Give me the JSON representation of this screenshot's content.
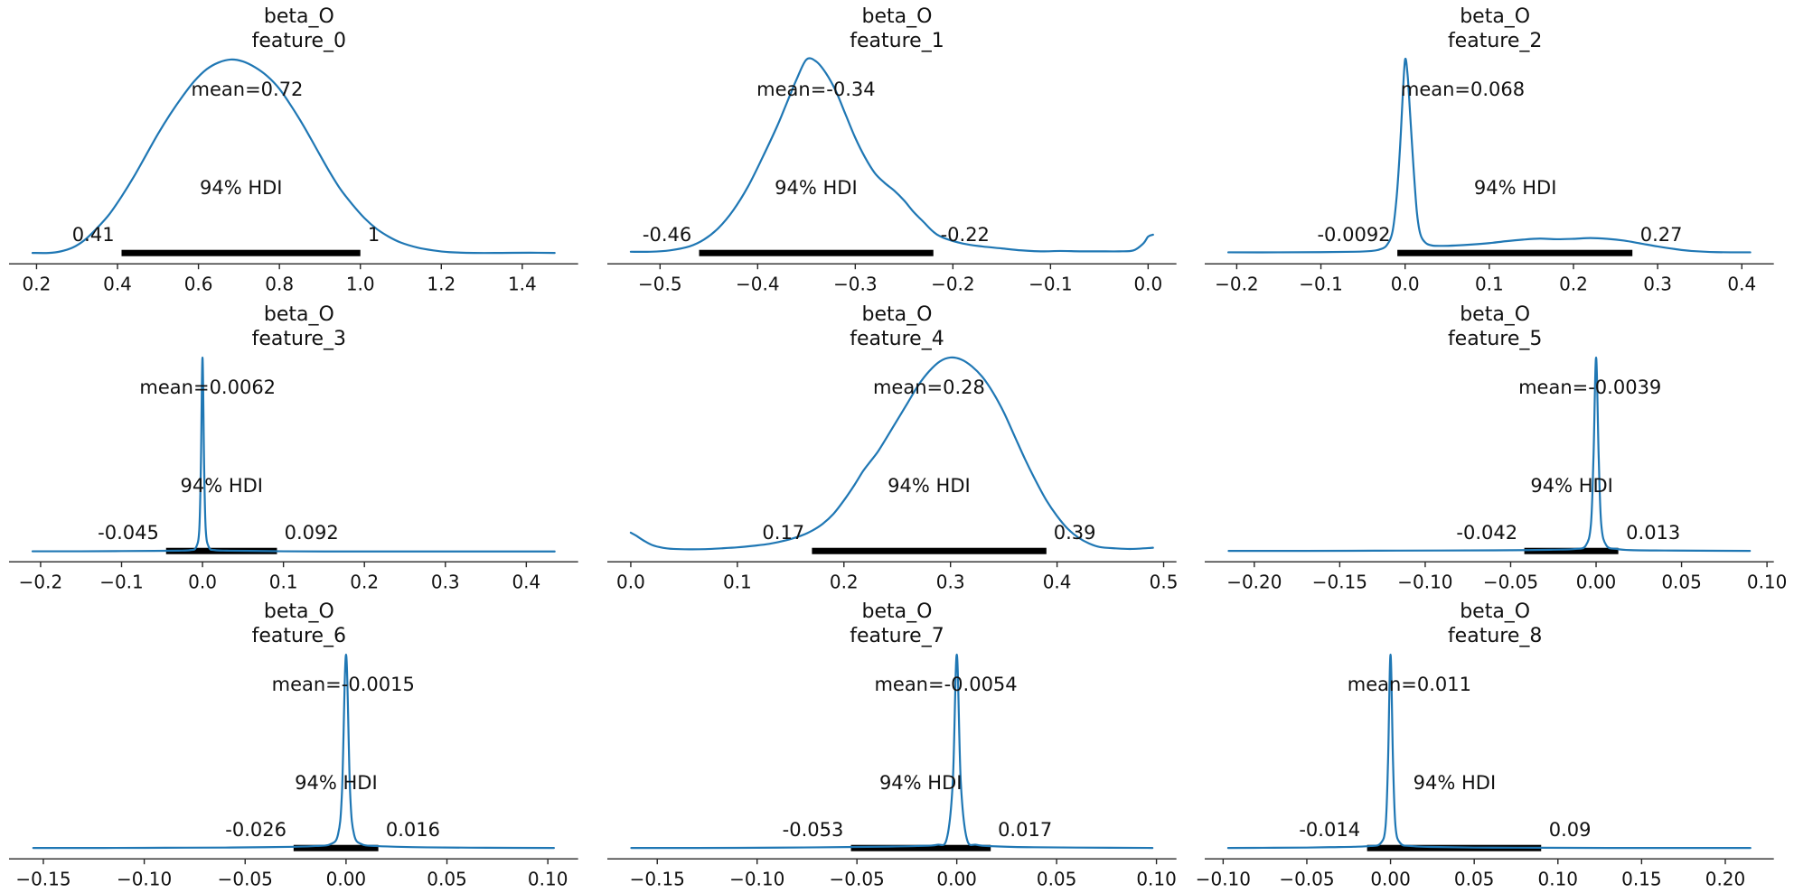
{
  "figure": {
    "background": "#ffffff",
    "curve_color": "#1f77b4",
    "hdi_bar_color": "#000000",
    "text_color": "#111111",
    "axis_color": "#262626",
    "rows": 3,
    "cols": 3
  },
  "chart_data": [
    {
      "type": "line",
      "title": "beta_O",
      "subtitle": "feature_0",
      "mean": 0.72,
      "mean_label": "mean=0.72",
      "hdi_label": "94% HDI",
      "hdi": [
        0.41,
        1.0
      ],
      "hdi_lo_label": "0.41",
      "hdi_hi_label": "1",
      "xlim": [
        0.132,
        1.538
      ],
      "xticks": [
        0.2,
        0.4,
        0.6,
        0.8,
        1.0,
        1.2,
        1.4
      ],
      "xtick_labels": [
        "0.2",
        "0.4",
        "0.6",
        "0.8",
        "1.0",
        "1.2",
        "1.4"
      ],
      "curve": [
        [
          0.19,
          0.012
        ],
        [
          0.23,
          0.012
        ],
        [
          0.26,
          0.02
        ],
        [
          0.29,
          0.04
        ],
        [
          0.32,
          0.08
        ],
        [
          0.35,
          0.14
        ],
        [
          0.38,
          0.21
        ],
        [
          0.41,
          0.3
        ],
        [
          0.44,
          0.4
        ],
        [
          0.47,
          0.51
        ],
        [
          0.5,
          0.62
        ],
        [
          0.53,
          0.72
        ],
        [
          0.56,
          0.81
        ],
        [
          0.59,
          0.89
        ],
        [
          0.62,
          0.95
        ],
        [
          0.65,
          0.985
        ],
        [
          0.68,
          1.0
        ],
        [
          0.71,
          0.99
        ],
        [
          0.74,
          0.96
        ],
        [
          0.77,
          0.915
        ],
        [
          0.8,
          0.85
        ],
        [
          0.83,
          0.76
        ],
        [
          0.86,
          0.66
        ],
        [
          0.89,
          0.55
        ],
        [
          0.92,
          0.44
        ],
        [
          0.95,
          0.34
        ],
        [
          0.98,
          0.26
        ],
        [
          1.01,
          0.19
        ],
        [
          1.04,
          0.135
        ],
        [
          1.07,
          0.095
        ],
        [
          1.1,
          0.065
        ],
        [
          1.14,
          0.04
        ],
        [
          1.18,
          0.025
        ],
        [
          1.22,
          0.016
        ],
        [
          1.28,
          0.012
        ],
        [
          1.35,
          0.012
        ],
        [
          1.42,
          0.013
        ],
        [
          1.48,
          0.012
        ]
      ]
    },
    {
      "type": "line",
      "title": "beta_O",
      "subtitle": "feature_1",
      "mean": -0.34,
      "mean_label": "mean=-0.34",
      "hdi_label": "94% HDI",
      "hdi": [
        -0.46,
        -0.22
      ],
      "hdi_lo_label": "-0.46",
      "hdi_hi_label": "-0.22",
      "xlim": [
        -0.554,
        0.029
      ],
      "xticks": [
        -0.5,
        -0.4,
        -0.3,
        -0.2,
        -0.1,
        0.0
      ],
      "xtick_labels": [
        "−0.5",
        "−0.4",
        "−0.3",
        "−0.2",
        "−0.1",
        "0.0"
      ],
      "curve": [
        [
          -0.53,
          0.018
        ],
        [
          -0.51,
          0.018
        ],
        [
          -0.49,
          0.025
        ],
        [
          -0.47,
          0.045
        ],
        [
          -0.455,
          0.08
        ],
        [
          -0.44,
          0.14
        ],
        [
          -0.425,
          0.23
        ],
        [
          -0.41,
          0.35
        ],
        [
          -0.395,
          0.5
        ],
        [
          -0.38,
          0.66
        ],
        [
          -0.37,
          0.78
        ],
        [
          -0.36,
          0.9
        ],
        [
          -0.35,
          1.0
        ],
        [
          -0.34,
          0.99
        ],
        [
          -0.33,
          0.93
        ],
        [
          -0.32,
          0.84
        ],
        [
          -0.31,
          0.72
        ],
        [
          -0.3,
          0.6
        ],
        [
          -0.29,
          0.5
        ],
        [
          -0.28,
          0.42
        ],
        [
          -0.27,
          0.37
        ],
        [
          -0.26,
          0.33
        ],
        [
          -0.25,
          0.28
        ],
        [
          -0.24,
          0.22
        ],
        [
          -0.23,
          0.17
        ],
        [
          -0.22,
          0.12
        ],
        [
          -0.21,
          0.09
        ],
        [
          -0.19,
          0.06
        ],
        [
          -0.17,
          0.045
        ],
        [
          -0.15,
          0.035
        ],
        [
          -0.13,
          0.025
        ],
        [
          -0.11,
          0.02
        ],
        [
          -0.09,
          0.022
        ],
        [
          -0.07,
          0.02
        ],
        [
          -0.05,
          0.02
        ],
        [
          -0.03,
          0.02
        ],
        [
          -0.015,
          0.025
        ],
        [
          -0.005,
          0.06
        ],
        [
          0.0,
          0.095
        ],
        [
          0.005,
          0.105
        ]
      ]
    },
    {
      "type": "line",
      "title": "beta_O",
      "subtitle": "feature_2",
      "mean": 0.068,
      "mean_label": "mean=0.068",
      "hdi_label": "94% HDI",
      "hdi": [
        -0.0092,
        0.27
      ],
      "hdi_lo_label": "-0.0092",
      "hdi_hi_label": "0.27",
      "xlim": [
        -0.238,
        0.438
      ],
      "xticks": [
        -0.2,
        -0.1,
        0.0,
        0.1,
        0.2,
        0.3,
        0.4
      ],
      "xtick_labels": [
        "−0.2",
        "−0.1",
        "0.0",
        "0.1",
        "0.2",
        "0.3",
        "0.4"
      ],
      "curve": [
        [
          -0.21,
          0.015
        ],
        [
          -0.15,
          0.015
        ],
        [
          -0.1,
          0.016
        ],
        [
          -0.06,
          0.018
        ],
        [
          -0.04,
          0.022
        ],
        [
          -0.03,
          0.03
        ],
        [
          -0.022,
          0.05
        ],
        [
          -0.015,
          0.12
        ],
        [
          -0.01,
          0.3
        ],
        [
          -0.006,
          0.55
        ],
        [
          -0.003,
          0.8
        ],
        [
          0.0,
          1.0
        ],
        [
          0.003,
          0.92
        ],
        [
          0.006,
          0.72
        ],
        [
          0.01,
          0.45
        ],
        [
          0.014,
          0.22
        ],
        [
          0.018,
          0.11
        ],
        [
          0.024,
          0.065
        ],
        [
          0.032,
          0.05
        ],
        [
          0.045,
          0.048
        ],
        [
          0.06,
          0.05
        ],
        [
          0.08,
          0.055
        ],
        [
          0.1,
          0.062
        ],
        [
          0.12,
          0.072
        ],
        [
          0.14,
          0.08
        ],
        [
          0.16,
          0.085
        ],
        [
          0.18,
          0.082
        ],
        [
          0.2,
          0.084
        ],
        [
          0.22,
          0.088
        ],
        [
          0.24,
          0.084
        ],
        [
          0.26,
          0.075
        ],
        [
          0.28,
          0.06
        ],
        [
          0.3,
          0.045
        ],
        [
          0.32,
          0.032
        ],
        [
          0.34,
          0.022
        ],
        [
          0.37,
          0.016
        ],
        [
          0.41,
          0.015
        ]
      ]
    },
    {
      "type": "line",
      "title": "beta_O",
      "subtitle": "feature_3",
      "mean": 0.0062,
      "mean_label": "mean=0.0062",
      "hdi_label": "94% HDI",
      "hdi": [
        -0.045,
        0.092
      ],
      "hdi_lo_label": "-0.045",
      "hdi_hi_label": "0.092",
      "xlim": [
        -0.239,
        0.464
      ],
      "xticks": [
        -0.2,
        -0.1,
        0.0,
        0.1,
        0.2,
        0.3,
        0.4
      ],
      "xtick_labels": [
        "−0.2",
        "−0.1",
        "0.0",
        "0.1",
        "0.2",
        "0.3",
        "0.4"
      ],
      "curve": [
        [
          -0.21,
          0.01
        ],
        [
          -0.15,
          0.01
        ],
        [
          -0.1,
          0.011
        ],
        [
          -0.06,
          0.012
        ],
        [
          -0.03,
          0.013
        ],
        [
          -0.015,
          0.016
        ],
        [
          -0.008,
          0.03
        ],
        [
          -0.004,
          0.12
        ],
        [
          -0.002,
          0.45
        ],
        [
          0.0,
          1.0
        ],
        [
          0.002,
          0.45
        ],
        [
          0.004,
          0.12
        ],
        [
          0.008,
          0.03
        ],
        [
          0.015,
          0.016
        ],
        [
          0.03,
          0.013
        ],
        [
          0.06,
          0.012
        ],
        [
          0.1,
          0.01
        ],
        [
          0.15,
          0.009
        ],
        [
          0.22,
          0.009
        ],
        [
          0.3,
          0.009
        ],
        [
          0.37,
          0.009
        ],
        [
          0.435,
          0.009
        ]
      ]
    },
    {
      "type": "line",
      "title": "beta_O",
      "subtitle": "feature_4",
      "mean": 0.28,
      "mean_label": "mean=0.28",
      "hdi_label": "94% HDI",
      "hdi": [
        0.17,
        0.39
      ],
      "hdi_lo_label": "0.17",
      "hdi_hi_label": "0.39",
      "xlim": [
        -0.022,
        0.512
      ],
      "xticks": [
        0.0,
        0.1,
        0.2,
        0.3,
        0.4,
        0.5
      ],
      "xtick_labels": [
        "0.0",
        "0.1",
        "0.2",
        "0.3",
        "0.4",
        "0.5"
      ],
      "curve": [
        [
          0.0,
          0.105
        ],
        [
          0.005,
          0.09
        ],
        [
          0.012,
          0.065
        ],
        [
          0.02,
          0.042
        ],
        [
          0.03,
          0.028
        ],
        [
          0.04,
          0.022
        ],
        [
          0.055,
          0.02
        ],
        [
          0.07,
          0.021
        ],
        [
          0.085,
          0.025
        ],
        [
          0.1,
          0.03
        ],
        [
          0.115,
          0.038
        ],
        [
          0.13,
          0.048
        ],
        [
          0.145,
          0.065
        ],
        [
          0.16,
          0.09
        ],
        [
          0.17,
          0.115
        ],
        [
          0.18,
          0.15
        ],
        [
          0.19,
          0.2
        ],
        [
          0.2,
          0.27
        ],
        [
          0.21,
          0.35
        ],
        [
          0.218,
          0.42
        ],
        [
          0.225,
          0.47
        ],
        [
          0.232,
          0.52
        ],
        [
          0.24,
          0.59
        ],
        [
          0.25,
          0.68
        ],
        [
          0.26,
          0.77
        ],
        [
          0.27,
          0.86
        ],
        [
          0.28,
          0.93
        ],
        [
          0.29,
          0.98
        ],
        [
          0.3,
          1.0
        ],
        [
          0.31,
          0.99
        ],
        [
          0.32,
          0.955
        ],
        [
          0.33,
          0.9
        ],
        [
          0.34,
          0.82
        ],
        [
          0.35,
          0.72
        ],
        [
          0.36,
          0.6
        ],
        [
          0.37,
          0.48
        ],
        [
          0.38,
          0.37
        ],
        [
          0.39,
          0.27
        ],
        [
          0.4,
          0.19
        ],
        [
          0.41,
          0.125
        ],
        [
          0.42,
          0.08
        ],
        [
          0.43,
          0.05
        ],
        [
          0.44,
          0.032
        ],
        [
          0.455,
          0.025
        ],
        [
          0.47,
          0.022
        ],
        [
          0.49,
          0.028
        ]
      ]
    },
    {
      "type": "line",
      "title": "beta_O",
      "subtitle": "feature_5",
      "mean": -0.0039,
      "mean_label": "mean=-0.0039",
      "hdi_label": "94% HDI",
      "hdi": [
        -0.042,
        0.013
      ],
      "hdi_lo_label": "-0.042",
      "hdi_hi_label": "0.013",
      "xlim": [
        -0.229,
        0.104
      ],
      "xticks": [
        -0.2,
        -0.15,
        -0.1,
        -0.05,
        0.0,
        0.05,
        0.1
      ],
      "xtick_labels": [
        "−0.20",
        "−0.15",
        "−0.10",
        "−0.05",
        "0.00",
        "0.05",
        "0.10"
      ],
      "curve": [
        [
          -0.215,
          0.012
        ],
        [
          -0.17,
          0.012
        ],
        [
          -0.13,
          0.013
        ],
        [
          -0.09,
          0.014
        ],
        [
          -0.06,
          0.015
        ],
        [
          -0.04,
          0.016
        ],
        [
          -0.025,
          0.018
        ],
        [
          -0.012,
          0.022
        ],
        [
          -0.006,
          0.04
        ],
        [
          -0.003,
          0.15
        ],
        [
          -0.0015,
          0.5
        ],
        [
          0.0,
          1.0
        ],
        [
          0.0015,
          0.5
        ],
        [
          0.003,
          0.15
        ],
        [
          0.006,
          0.04
        ],
        [
          0.012,
          0.022
        ],
        [
          0.02,
          0.016
        ],
        [
          0.04,
          0.014
        ],
        [
          0.06,
          0.013
        ],
        [
          0.09,
          0.012
        ]
      ]
    },
    {
      "type": "line",
      "title": "beta_O",
      "subtitle": "feature_6",
      "mean": -0.0015,
      "mean_label": "mean=-0.0015",
      "hdi_label": "94% HDI",
      "hdi": [
        -0.026,
        0.016
      ],
      "hdi_lo_label": "-0.026",
      "hdi_hi_label": "0.016",
      "xlim": [
        -0.167,
        0.115
      ],
      "xticks": [
        -0.15,
        -0.1,
        -0.05,
        0.0,
        0.05,
        0.1
      ],
      "xtick_labels": [
        "−0.15",
        "−0.10",
        "−0.05",
        "0.00",
        "0.05",
        "0.10"
      ],
      "curve": [
        [
          -0.155,
          0.012
        ],
        [
          -0.12,
          0.012
        ],
        [
          -0.09,
          0.013
        ],
        [
          -0.06,
          0.014
        ],
        [
          -0.04,
          0.016
        ],
        [
          -0.025,
          0.018
        ],
        [
          -0.015,
          0.022
        ],
        [
          -0.008,
          0.03
        ],
        [
          -0.004,
          0.08
        ],
        [
          -0.002,
          0.3
        ],
        [
          0.0,
          1.0
        ],
        [
          0.002,
          0.3
        ],
        [
          0.004,
          0.08
        ],
        [
          0.008,
          0.03
        ],
        [
          0.015,
          0.022
        ],
        [
          0.025,
          0.018
        ],
        [
          0.04,
          0.015
        ],
        [
          0.07,
          0.013
        ],
        [
          0.103,
          0.012
        ]
      ]
    },
    {
      "type": "line",
      "title": "beta_O",
      "subtitle": "feature_7",
      "mean": -0.0054,
      "mean_label": "mean=-0.0054",
      "hdi_label": "94% HDI",
      "hdi": [
        -0.053,
        0.017
      ],
      "hdi_lo_label": "-0.053",
      "hdi_hi_label": "0.017",
      "xlim": [
        -0.175,
        0.11
      ],
      "xticks": [
        -0.15,
        -0.1,
        -0.05,
        0.0,
        0.05,
        0.1
      ],
      "xtick_labels": [
        "−0.15",
        "−0.10",
        "−0.05",
        "0.00",
        "0.05",
        "0.10"
      ],
      "curve": [
        [
          -0.163,
          0.012
        ],
        [
          -0.13,
          0.012
        ],
        [
          -0.1,
          0.013
        ],
        [
          -0.07,
          0.015
        ],
        [
          -0.05,
          0.017
        ],
        [
          -0.035,
          0.019
        ],
        [
          -0.02,
          0.022
        ],
        [
          -0.01,
          0.028
        ],
        [
          -0.005,
          0.06
        ],
        [
          -0.002,
          0.35
        ],
        [
          0.0,
          1.0
        ],
        [
          0.002,
          0.35
        ],
        [
          0.005,
          0.06
        ],
        [
          0.01,
          0.028
        ],
        [
          0.02,
          0.02
        ],
        [
          0.035,
          0.016
        ],
        [
          0.06,
          0.014
        ],
        [
          0.098,
          0.012
        ]
      ]
    },
    {
      "type": "line",
      "title": "beta_O",
      "subtitle": "feature_8",
      "mean": 0.011,
      "mean_label": "mean=0.011",
      "hdi_label": "94% HDI",
      "hdi": [
        -0.014,
        0.09
      ],
      "hdi_lo_label": "-0.014",
      "hdi_hi_label": "0.09",
      "xlim": [
        -0.111,
        0.229
      ],
      "xticks": [
        -0.1,
        -0.05,
        0.0,
        0.05,
        0.1,
        0.15,
        0.2
      ],
      "xtick_labels": [
        "−0.10",
        "−0.05",
        "0.00",
        "0.05",
        "0.10",
        "0.15",
        "0.20"
      ],
      "curve": [
        [
          -0.097,
          0.012
        ],
        [
          -0.07,
          0.013
        ],
        [
          -0.05,
          0.014
        ],
        [
          -0.035,
          0.016
        ],
        [
          -0.022,
          0.018
        ],
        [
          -0.012,
          0.022
        ],
        [
          -0.006,
          0.035
        ],
        [
          -0.003,
          0.12
        ],
        [
          -0.0015,
          0.45
        ],
        [
          0.0,
          1.0
        ],
        [
          0.0015,
          0.45
        ],
        [
          0.003,
          0.12
        ],
        [
          0.006,
          0.035
        ],
        [
          0.012,
          0.022
        ],
        [
          0.025,
          0.017
        ],
        [
          0.05,
          0.014
        ],
        [
          0.09,
          0.013
        ],
        [
          0.13,
          0.012
        ],
        [
          0.17,
          0.012
        ],
        [
          0.215,
          0.012
        ]
      ]
    }
  ]
}
